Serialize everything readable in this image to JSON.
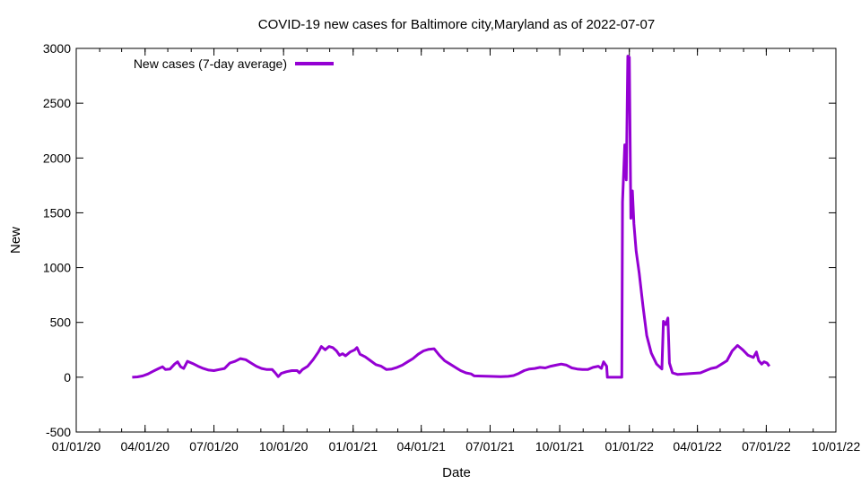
{
  "chart_data": {
    "type": "line",
    "title": "COVID-19 new cases for Baltimore city,Maryland as of 2022-07-07",
    "xlabel": "Date",
    "ylabel": "New",
    "x_ticks": [
      {
        "date": "2020-01-01",
        "label": "01/01/20"
      },
      {
        "date": "2020-04-01",
        "label": "04/01/20"
      },
      {
        "date": "2020-07-01",
        "label": "07/01/20"
      },
      {
        "date": "2020-10-01",
        "label": "10/01/20"
      },
      {
        "date": "2021-01-01",
        "label": "01/01/21"
      },
      {
        "date": "2021-04-01",
        "label": "04/01/21"
      },
      {
        "date": "2021-07-01",
        "label": "07/01/21"
      },
      {
        "date": "2021-10-01",
        "label": "10/01/21"
      },
      {
        "date": "2022-01-01",
        "label": "01/01/22"
      },
      {
        "date": "2022-04-01",
        "label": "04/01/22"
      },
      {
        "date": "2022-07-01",
        "label": "07/01/22"
      },
      {
        "date": "2022-10-01",
        "label": "10/01/22"
      }
    ],
    "xlim": [
      "2020-01-01",
      "2022-10-01"
    ],
    "y_ticks": [
      -500,
      0,
      500,
      1000,
      1500,
      2000,
      2500,
      3000
    ],
    "ylim": [
      -500,
      3000
    ],
    "grid": false,
    "legend_position": "top-left",
    "series": [
      {
        "name": "New cases (7-day average)",
        "color": "#9400d3",
        "points": [
          [
            "2020-03-15",
            0
          ],
          [
            "2020-03-22",
            3
          ],
          [
            "2020-03-29",
            12
          ],
          [
            "2020-04-05",
            30
          ],
          [
            "2020-04-12",
            55
          ],
          [
            "2020-04-19",
            80
          ],
          [
            "2020-04-24",
            95
          ],
          [
            "2020-04-28",
            70
          ],
          [
            "2020-05-04",
            75
          ],
          [
            "2020-05-10",
            120
          ],
          [
            "2020-05-14",
            140
          ],
          [
            "2020-05-18",
            95
          ],
          [
            "2020-05-22",
            80
          ],
          [
            "2020-05-27",
            145
          ],
          [
            "2020-06-03",
            125
          ],
          [
            "2020-06-10",
            100
          ],
          [
            "2020-06-17",
            80
          ],
          [
            "2020-06-24",
            65
          ],
          [
            "2020-07-01",
            60
          ],
          [
            "2020-07-08",
            70
          ],
          [
            "2020-07-15",
            80
          ],
          [
            "2020-07-22",
            130
          ],
          [
            "2020-07-29",
            145
          ],
          [
            "2020-08-05",
            170
          ],
          [
            "2020-08-12",
            160
          ],
          [
            "2020-08-19",
            130
          ],
          [
            "2020-08-26",
            100
          ],
          [
            "2020-09-02",
            80
          ],
          [
            "2020-09-09",
            70
          ],
          [
            "2020-09-16",
            70
          ],
          [
            "2020-09-20",
            40
          ],
          [
            "2020-09-24",
            5
          ],
          [
            "2020-09-28",
            35
          ],
          [
            "2020-10-05",
            50
          ],
          [
            "2020-10-12",
            60
          ],
          [
            "2020-10-19",
            60
          ],
          [
            "2020-10-22",
            40
          ],
          [
            "2020-10-26",
            70
          ],
          [
            "2020-11-02",
            100
          ],
          [
            "2020-11-09",
            160
          ],
          [
            "2020-11-16",
            230
          ],
          [
            "2020-11-20",
            280
          ],
          [
            "2020-11-25",
            250
          ],
          [
            "2020-11-30",
            280
          ],
          [
            "2020-12-05",
            270
          ],
          [
            "2020-12-10",
            240
          ],
          [
            "2020-12-14",
            200
          ],
          [
            "2020-12-18",
            215
          ],
          [
            "2020-12-22",
            195
          ],
          [
            "2020-12-28",
            230
          ],
          [
            "2021-01-03",
            250
          ],
          [
            "2021-01-06",
            270
          ],
          [
            "2021-01-10",
            210
          ],
          [
            "2021-01-17",
            185
          ],
          [
            "2021-01-24",
            150
          ],
          [
            "2021-01-31",
            115
          ],
          [
            "2021-02-07",
            100
          ],
          [
            "2021-02-14",
            70
          ],
          [
            "2021-02-21",
            75
          ],
          [
            "2021-02-28",
            90
          ],
          [
            "2021-03-07",
            110
          ],
          [
            "2021-03-14",
            140
          ],
          [
            "2021-03-21",
            170
          ],
          [
            "2021-03-28",
            210
          ],
          [
            "2021-04-04",
            240
          ],
          [
            "2021-04-11",
            255
          ],
          [
            "2021-04-18",
            260
          ],
          [
            "2021-04-25",
            200
          ],
          [
            "2021-05-02",
            150
          ],
          [
            "2021-05-09",
            120
          ],
          [
            "2021-05-16",
            90
          ],
          [
            "2021-05-23",
            60
          ],
          [
            "2021-05-30",
            40
          ],
          [
            "2021-06-06",
            30
          ],
          [
            "2021-06-10",
            12
          ],
          [
            "2021-06-20",
            10
          ],
          [
            "2021-07-01",
            8
          ],
          [
            "2021-07-15",
            5
          ],
          [
            "2021-07-25",
            8
          ],
          [
            "2021-08-01",
            15
          ],
          [
            "2021-08-08",
            35
          ],
          [
            "2021-08-15",
            60
          ],
          [
            "2021-08-22",
            75
          ],
          [
            "2021-08-29",
            80
          ],
          [
            "2021-09-05",
            90
          ],
          [
            "2021-09-12",
            85
          ],
          [
            "2021-09-19",
            100
          ],
          [
            "2021-09-26",
            110
          ],
          [
            "2021-10-03",
            120
          ],
          [
            "2021-10-10",
            110
          ],
          [
            "2021-10-17",
            85
          ],
          [
            "2021-10-24",
            75
          ],
          [
            "2021-10-31",
            70
          ],
          [
            "2021-11-07",
            70
          ],
          [
            "2021-11-14",
            90
          ],
          [
            "2021-11-21",
            100
          ],
          [
            "2021-11-25",
            80
          ],
          [
            "2021-11-28",
            140
          ],
          [
            "2021-12-02",
            100
          ],
          [
            "2021-12-03",
            0
          ],
          [
            "2021-12-22",
            0
          ],
          [
            "2021-12-23",
            1600
          ],
          [
            "2021-12-26",
            2120
          ],
          [
            "2021-12-28",
            1800
          ],
          [
            "2021-12-30",
            2930
          ],
          [
            "2022-01-01",
            2920
          ],
          [
            "2022-01-03",
            1450
          ],
          [
            "2022-01-05",
            1700
          ],
          [
            "2022-01-07",
            1400
          ],
          [
            "2022-01-10",
            1150
          ],
          [
            "2022-01-14",
            950
          ],
          [
            "2022-01-19",
            650
          ],
          [
            "2022-01-24",
            380
          ],
          [
            "2022-01-30",
            220
          ],
          [
            "2022-02-06",
            120
          ],
          [
            "2022-02-13",
            75
          ],
          [
            "2022-02-15",
            510
          ],
          [
            "2022-02-18",
            480
          ],
          [
            "2022-02-21",
            540
          ],
          [
            "2022-02-23",
            130
          ],
          [
            "2022-02-27",
            40
          ],
          [
            "2022-03-06",
            25
          ],
          [
            "2022-03-15",
            30
          ],
          [
            "2022-03-25",
            35
          ],
          [
            "2022-04-05",
            40
          ],
          [
            "2022-04-12",
            60
          ],
          [
            "2022-04-19",
            80
          ],
          [
            "2022-04-26",
            90
          ],
          [
            "2022-05-03",
            120
          ],
          [
            "2022-05-10",
            150
          ],
          [
            "2022-05-17",
            240
          ],
          [
            "2022-05-24",
            290
          ],
          [
            "2022-05-31",
            250
          ],
          [
            "2022-06-07",
            200
          ],
          [
            "2022-06-14",
            180
          ],
          [
            "2022-06-18",
            230
          ],
          [
            "2022-06-21",
            150
          ],
          [
            "2022-06-25",
            120
          ],
          [
            "2022-06-28",
            140
          ],
          [
            "2022-07-02",
            130
          ],
          [
            "2022-07-05",
            100
          ]
        ]
      }
    ]
  }
}
